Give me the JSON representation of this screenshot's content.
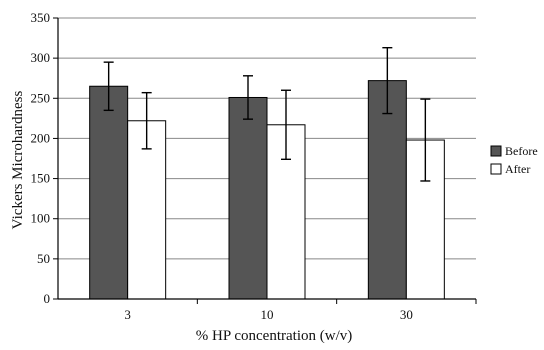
{
  "chart_data": {
    "type": "bar",
    "title": "",
    "xlabel": "% HP concentration (w/v)",
    "ylabel": "Vickers Microhardness",
    "categories": [
      "3",
      "10",
      "30"
    ],
    "ylim": [
      0,
      350
    ],
    "yticks": [
      0,
      50,
      100,
      150,
      200,
      250,
      300,
      350
    ],
    "grid": true,
    "legend_position": "right",
    "series": [
      {
        "name": "Before",
        "color": "#555555",
        "values": [
          265,
          251,
          272
        ],
        "errors": [
          30,
          27,
          41
        ]
      },
      {
        "name": "After",
        "color": "#ffffff",
        "values": [
          222,
          217,
          198
        ],
        "errors": [
          35,
          43,
          51
        ]
      }
    ]
  }
}
